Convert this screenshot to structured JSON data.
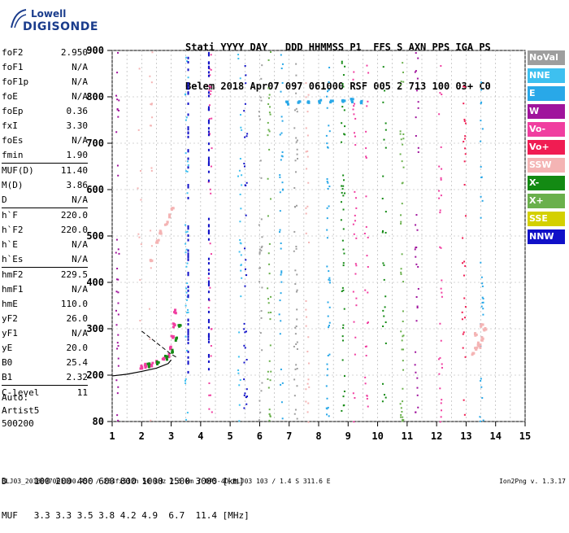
{
  "logo": {
    "line1": "Lowell",
    "line2": "DIGISONDE"
  },
  "header": {
    "row1": [
      "Stati",
      "YYYY",
      "DAY",
      "DDD",
      "HHMMSS",
      "P1",
      "FFS",
      "S",
      "AXN",
      "PPS",
      "IGA",
      "PS"
    ],
    "row2": [
      "Belem",
      "2018",
      "Apr07",
      "097",
      "061000",
      "RSF",
      "005",
      "2",
      "713",
      "100",
      "03+",
      "C0"
    ]
  },
  "params_top": [
    {
      "k": "foF2",
      "v": "2.950"
    },
    {
      "k": "foF1",
      "v": "N/A"
    },
    {
      "k": "foF1p",
      "v": "N/A"
    },
    {
      "k": "foE",
      "v": "N/A"
    },
    {
      "k": "foEp",
      "v": "0.36"
    },
    {
      "k": "fxI",
      "v": "3.30"
    },
    {
      "k": "foEs",
      "v": "N/A"
    },
    {
      "k": "fmin",
      "v": "1.90"
    }
  ],
  "params_mid": [
    {
      "k": "MUF(D)",
      "v": "11.40"
    },
    {
      "k": "M(D)",
      "v": "3.86"
    },
    {
      "k": "D",
      "v": "N/A"
    }
  ],
  "params_h": [
    {
      "k": "h`F",
      "v": "220.0"
    },
    {
      "k": "h`F2",
      "v": "220.0"
    },
    {
      "k": "h`E",
      "v": "N/A"
    },
    {
      "k": "h`Es",
      "v": "N/A"
    }
  ],
  "params_prof": [
    {
      "k": "hmF2",
      "v": "229.5"
    },
    {
      "k": "hmF1",
      "v": "N/A"
    },
    {
      "k": "hmE",
      "v": "110.0"
    },
    {
      "k": "yF2",
      "v": "26.0"
    },
    {
      "k": "yF1",
      "v": "N/A"
    },
    {
      "k": "yE",
      "v": "20.0"
    },
    {
      "k": "B0",
      "v": "25.4"
    },
    {
      "k": "B1",
      "v": "2.32"
    }
  ],
  "clevel": {
    "k": "C-level",
    "v": "11"
  },
  "auto": {
    "line1": "Auto:",
    "line2": "Artist5",
    "line3": "500200"
  },
  "legend": [
    {
      "label": "NoVal",
      "color": "#9e9e9e"
    },
    {
      "label": "NNE",
      "color": "#3ec0f0"
    },
    {
      "label": "E",
      "color": "#29a8e8"
    },
    {
      "label": "W",
      "color": "#a0139c"
    },
    {
      "label": "Vo-",
      "color": "#f03ea0"
    },
    {
      "label": "Vo+",
      "color": "#f01c52"
    },
    {
      "label": "SSW",
      "color": "#f4b4b4"
    },
    {
      "label": "X-",
      "color": "#138a13"
    },
    {
      "label": "X+",
      "color": "#6ab04c"
    },
    {
      "label": "SSE",
      "color": "#d4d000"
    },
    {
      "label": "NNW",
      "color": "#1010c8"
    }
  ],
  "dtable": {
    "row1_label": "D",
    "row1": [
      "100",
      "200",
      "400",
      "600",
      "800",
      "1000",
      "1500",
      "3000",
      "[km]"
    ],
    "row2_label": "MUF",
    "row2": [
      "3.3",
      "3.3",
      "3.5",
      "3.8",
      "4.2",
      "4.9",
      "6.7",
      "11.4",
      "[MHz]"
    ]
  },
  "footer": {
    "left": "BLJ03_2018097061000.RSF / 284fx512h 50 kHz 2.5 km / DPS-4D BLJ03 103 / 1.4 S 311.6 E",
    "right": "Ion2Png v. 1.3.17"
  },
  "chart_data": {
    "type": "scatter",
    "title": "",
    "xlabel": "",
    "ylabel": "",
    "xlim": [
      1,
      15
    ],
    "ylim": [
      80,
      900
    ],
    "x_ticks": [
      "1",
      "2",
      "3",
      "4",
      "5",
      "6",
      "7",
      "8",
      "9",
      "10",
      "11",
      "12",
      "13",
      "14",
      "15"
    ],
    "y_ticks": [
      "80",
      "200",
      "300",
      "400",
      "500",
      "600",
      "700",
      "800",
      "900"
    ],
    "y_tick_values": [
      80,
      200,
      300,
      400,
      500,
      600,
      700,
      800,
      900
    ],
    "grid": "on",
    "traces": [
      {
        "name": "O-trace",
        "color": "#f03ea0",
        "points": [
          [
            1.95,
            220
          ],
          [
            2.1,
            223
          ],
          [
            2.3,
            226
          ],
          [
            2.5,
            230
          ],
          [
            2.7,
            236
          ],
          [
            2.85,
            245
          ],
          [
            2.95,
            262
          ],
          [
            3.0,
            285
          ],
          [
            3.05,
            310
          ],
          [
            3.1,
            340
          ]
        ]
      },
      {
        "name": "X-trace",
        "color": "#138a13",
        "points": [
          [
            2.2,
            224
          ],
          [
            2.5,
            230
          ],
          [
            2.8,
            240
          ],
          [
            3.0,
            255
          ],
          [
            3.15,
            280
          ],
          [
            3.25,
            310
          ]
        ]
      },
      {
        "name": "multihop",
        "color": "#f4b4b4",
        "points": [
          [
            2.3,
            450
          ],
          [
            2.5,
            490
          ],
          [
            2.6,
            510
          ],
          [
            2.8,
            530
          ],
          [
            2.9,
            545
          ],
          [
            3.0,
            560
          ]
        ]
      },
      {
        "name": "Es-like",
        "color": "#29a8e8",
        "points": [
          [
            6.9,
            790
          ],
          [
            7.3,
            792
          ],
          [
            7.6,
            790
          ],
          [
            8.0,
            793
          ],
          [
            8.4,
            791
          ],
          [
            8.8,
            792
          ],
          [
            9.1,
            795
          ],
          [
            9.4,
            793
          ]
        ]
      },
      {
        "name": "spread",
        "color": "#f4b4b4",
        "points": [
          [
            13.2,
            250
          ],
          [
            13.3,
            260
          ],
          [
            13.4,
            270
          ],
          [
            13.5,
            280
          ],
          [
            13.6,
            300
          ],
          [
            13.5,
            310
          ],
          [
            13.4,
            265
          ],
          [
            13.3,
            290
          ]
        ]
      }
    ],
    "profile_line": [
      [
        1.0,
        198
      ],
      [
        1.5,
        202
      ],
      [
        2.0,
        208
      ],
      [
        2.5,
        215
      ],
      [
        2.9,
        225
      ],
      [
        3.0,
        233
      ]
    ],
    "profile_dashed": [
      [
        2.0,
        295
      ],
      [
        2.4,
        275
      ],
      [
        2.8,
        255
      ],
      [
        3.0,
        245
      ],
      [
        3.2,
        238
      ]
    ]
  }
}
